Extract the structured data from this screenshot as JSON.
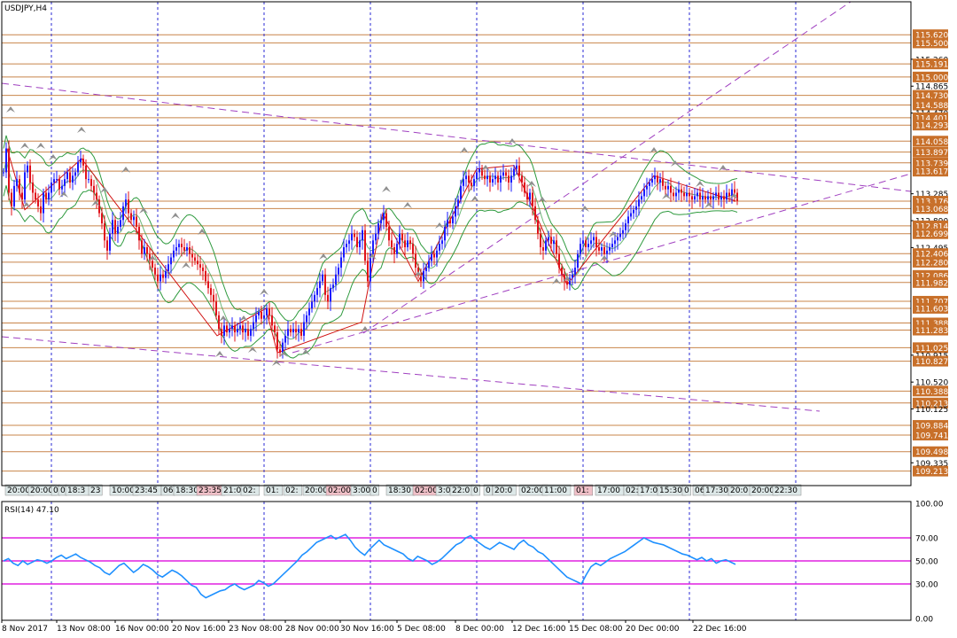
{
  "window": {
    "title": "USDJPY,H4"
  },
  "chart_data": [
    {
      "type": "candlestick",
      "title": "USDJPY,H4",
      "ylim": [
        109.0,
        116.0
      ],
      "price_labels": [
        "115.620",
        "115.500",
        "115.260",
        "115.191",
        "115.000",
        "114.865",
        "114.730",
        "114.588",
        "114.470",
        "114.401",
        "114.293",
        "114.058",
        "113.897",
        "113.739",
        "113.617",
        "113.285",
        "113.176",
        "113.068",
        "112.890",
        "112.814",
        "112.699",
        "112.495",
        "112.406",
        "112.280",
        "112.086",
        "111.982",
        "111.707",
        "111.603",
        "111.388",
        "111.283",
        "111.025",
        "110.915",
        "110.827",
        "110.520",
        "110.388",
        "110.213",
        "110.125",
        "109.884",
        "109.741",
        "109.498",
        "109.335",
        "109.213"
      ],
      "level_lines": [
        115.62,
        115.5,
        115.191,
        115.0,
        114.73,
        114.588,
        114.401,
        114.293,
        114.058,
        113.897,
        113.739,
        113.617,
        113.176,
        113.068,
        112.814,
        112.699,
        112.406,
        112.28,
        112.086,
        111.982,
        111.707,
        111.603,
        111.388,
        111.283,
        111.025,
        110.827,
        110.388,
        110.213,
        109.884,
        109.741,
        109.498,
        109.213
      ],
      "highlighted_labels": [
        "115.620",
        "115.500",
        "115.191",
        "115.000",
        "114.730",
        "114.588",
        "114.401",
        "114.293",
        "114.058",
        "113.897",
        "113.739",
        "113.617",
        "113.176",
        "113.068",
        "112.814",
        "112.699",
        "112.406",
        "112.280",
        "112.086",
        "111.982",
        "111.707",
        "111.603",
        "111.388",
        "111.283",
        "111.025",
        "110.827",
        "110.388",
        "110.213",
        "109.884",
        "109.741",
        "109.498",
        "109.213"
      ],
      "close_path": [
        [
          0,
          113.6
        ],
        [
          3,
          113.95
        ],
        [
          6,
          113.3
        ],
        [
          9,
          113.1
        ],
        [
          12,
          113.4
        ],
        [
          15,
          113.5
        ],
        [
          18,
          113.3
        ],
        [
          21,
          113.2
        ],
        [
          24,
          113.6
        ],
        [
          27,
          113.7
        ],
        [
          30,
          113.45
        ],
        [
          33,
          113.3
        ],
        [
          36,
          113.2
        ],
        [
          39,
          113.1
        ],
        [
          42,
          113.0
        ],
        [
          45,
          113.3
        ],
        [
          48,
          113.2
        ],
        [
          51,
          113.3
        ],
        [
          54,
          113.45
        ],
        [
          57,
          113.5
        ],
        [
          60,
          113.5
        ],
        [
          63,
          113.35
        ],
        [
          66,
          113.4
        ],
        [
          69,
          113.5
        ],
        [
          72,
          113.6
        ],
        [
          75,
          113.45
        ],
        [
          78,
          113.55
        ],
        [
          81,
          113.6
        ],
        [
          84,
          113.75
        ],
        [
          87,
          113.8
        ],
        [
          90,
          113.7
        ],
        [
          93,
          113.5
        ],
        [
          96,
          113.5
        ],
        [
          99,
          113.4
        ],
        [
          102,
          113.3
        ],
        [
          105,
          113.2
        ],
        [
          108,
          113.0
        ],
        [
          111,
          112.85
        ],
        [
          114,
          112.6
        ],
        [
          117,
          112.45
        ],
        [
          120,
          112.7
        ],
        [
          123,
          112.9
        ],
        [
          126,
          112.7
        ],
        [
          129,
          112.8
        ],
        [
          132,
          112.9
        ],
        [
          135,
          113.1
        ],
        [
          138,
          113.2
        ],
        [
          141,
          113.0
        ],
        [
          144,
          112.9
        ],
        [
          147,
          112.95
        ],
        [
          150,
          112.8
        ],
        [
          153,
          112.6
        ],
        [
          156,
          112.4
        ],
        [
          159,
          112.5
        ],
        [
          162,
          112.4
        ],
        [
          165,
          112.3
        ],
        [
          168,
          112.2
        ],
        [
          171,
          112.1
        ],
        [
          174,
          112.0
        ],
        [
          177,
          112.1
        ],
        [
          180,
          112.05
        ],
        [
          183,
          112.15
        ],
        [
          186,
          112.25
        ],
        [
          189,
          112.35
        ],
        [
          192,
          112.45
        ],
        [
          195,
          112.5
        ],
        [
          198,
          112.55
        ],
        [
          201,
          112.5
        ],
        [
          204,
          112.45
        ],
        [
          207,
          112.5
        ],
        [
          210,
          112.4
        ],
        [
          213,
          112.35
        ],
        [
          216,
          112.3
        ],
        [
          219,
          112.25
        ],
        [
          222,
          112.2
        ],
        [
          225,
          112.15
        ],
        [
          228,
          112.0
        ],
        [
          231,
          111.9
        ],
        [
          234,
          111.8
        ],
        [
          237,
          111.7
        ],
        [
          240,
          111.5
        ],
        [
          243,
          111.3
        ],
        [
          246,
          111.2
        ],
        [
          249,
          111.35
        ],
        [
          252,
          111.25
        ],
        [
          255,
          111.3
        ],
        [
          258,
          111.35
        ],
        [
          261,
          111.25
        ],
        [
          264,
          111.3
        ],
        [
          267,
          111.35
        ],
        [
          270,
          111.25
        ],
        [
          273,
          111.3
        ],
        [
          276,
          111.2
        ],
        [
          279,
          111.3
        ],
        [
          282,
          111.4
        ],
        [
          285,
          111.5
        ],
        [
          288,
          111.55
        ],
        [
          291,
          111.45
        ],
        [
          294,
          111.5
        ],
        [
          297,
          111.6
        ],
        [
          300,
          111.5
        ],
        [
          303,
          111.35
        ],
        [
          306,
          111.25
        ],
        [
          309,
          111.0
        ],
        [
          312,
          110.95
        ],
        [
          315,
          111.1
        ],
        [
          318,
          111.2
        ],
        [
          321,
          111.3
        ],
        [
          324,
          111.25
        ],
        [
          327,
          111.3
        ],
        [
          330,
          111.25
        ],
        [
          333,
          111.3
        ],
        [
          336,
          111.2
        ],
        [
          339,
          111.4
        ],
        [
          342,
          111.5
        ],
        [
          345,
          111.6
        ],
        [
          348,
          111.7
        ],
        [
          351,
          111.8
        ],
        [
          354,
          111.9
        ],
        [
          357,
          112.0
        ],
        [
          360,
          112.1
        ],
        [
          363,
          111.8
        ],
        [
          366,
          111.7
        ],
        [
          369,
          111.9
        ],
        [
          372,
          111.95
        ],
        [
          375,
          112.1
        ],
        [
          378,
          112.2
        ],
        [
          381,
          112.35
        ],
        [
          384,
          112.5
        ],
        [
          387,
          112.55
        ],
        [
          390,
          112.6
        ],
        [
          393,
          112.7
        ],
        [
          396,
          112.65
        ],
        [
          399,
          112.5
        ],
        [
          402,
          112.6
        ],
        [
          405,
          112.75
        ],
        [
          408,
          112.3
        ],
        [
          411,
          112.0
        ],
        [
          414,
          112.4
        ],
        [
          417,
          112.6
        ],
        [
          420,
          112.7
        ],
        [
          423,
          112.85
        ],
        [
          426,
          112.9
        ],
        [
          429,
          113.0
        ],
        [
          432,
          112.8
        ],
        [
          435,
          112.6
        ],
        [
          438,
          112.5
        ],
        [
          441,
          112.4
        ],
        [
          444,
          112.55
        ],
        [
          447,
          112.7
        ],
        [
          450,
          112.6
        ],
        [
          453,
          112.5
        ],
        [
          456,
          112.6
        ],
        [
          459,
          112.55
        ],
        [
          462,
          112.4
        ],
        [
          465,
          112.2
        ],
        [
          468,
          112.1
        ],
        [
          471,
          112.0
        ],
        [
          474,
          112.15
        ],
        [
          477,
          112.2
        ],
        [
          480,
          112.3
        ],
        [
          483,
          112.4
        ],
        [
          486,
          112.35
        ],
        [
          489,
          112.45
        ],
        [
          492,
          112.55
        ],
        [
          495,
          112.6
        ],
        [
          498,
          112.8
        ],
        [
          501,
          112.9
        ],
        [
          504,
          112.85
        ],
        [
          507,
          112.95
        ],
        [
          510,
          113.1
        ],
        [
          513,
          113.2
        ],
        [
          516,
          113.4
        ],
        [
          519,
          113.5
        ],
        [
          522,
          113.55
        ],
        [
          525,
          113.45
        ],
        [
          528,
          113.4
        ],
        [
          531,
          113.5
        ],
        [
          534,
          113.6
        ],
        [
          537,
          113.65
        ],
        [
          540,
          113.55
        ],
        [
          543,
          113.5
        ],
        [
          546,
          113.55
        ],
        [
          549,
          113.45
        ],
        [
          552,
          113.5
        ],
        [
          555,
          113.55
        ],
        [
          558,
          113.45
        ],
        [
          561,
          113.55
        ],
        [
          564,
          113.6
        ],
        [
          567,
          113.55
        ],
        [
          570,
          113.45
        ],
        [
          573,
          113.55
        ],
        [
          576,
          113.65
        ],
        [
          579,
          113.7
        ],
        [
          582,
          113.55
        ],
        [
          585,
          113.45
        ],
        [
          588,
          113.3
        ],
        [
          591,
          113.2
        ],
        [
          594,
          113.3
        ],
        [
          597,
          113.1
        ],
        [
          600,
          112.9
        ],
        [
          603,
          112.7
        ],
        [
          606,
          112.5
        ],
        [
          609,
          112.45
        ],
        [
          612,
          112.6
        ],
        [
          615,
          112.65
        ],
        [
          618,
          112.55
        ],
        [
          621,
          112.6
        ],
        [
          624,
          112.4
        ],
        [
          627,
          112.2
        ],
        [
          630,
          112.1
        ],
        [
          633,
          112.0
        ],
        [
          636,
          111.95
        ],
        [
          639,
          112.05
        ],
        [
          642,
          112.1
        ],
        [
          645,
          112.2
        ],
        [
          648,
          112.4
        ],
        [
          651,
          112.55
        ],
        [
          654,
          112.6
        ],
        [
          657,
          112.5
        ],
        [
          660,
          112.55
        ],
        [
          663,
          112.6
        ],
        [
          666,
          112.65
        ],
        [
          669,
          112.5
        ],
        [
          672,
          112.45
        ],
        [
          675,
          112.5
        ],
        [
          678,
          112.4
        ],
        [
          681,
          112.45
        ],
        [
          684,
          112.5
        ],
        [
          687,
          112.55
        ],
        [
          690,
          112.6
        ],
        [
          693,
          112.65
        ],
        [
          696,
          112.7
        ],
        [
          699,
          112.75
        ],
        [
          702,
          112.85
        ],
        [
          705,
          112.95
        ],
        [
          708,
          113.0
        ],
        [
          711,
          113.05
        ],
        [
          714,
          113.1
        ],
        [
          717,
          113.2
        ],
        [
          720,
          113.25
        ],
        [
          723,
          113.35
        ],
        [
          726,
          113.4
        ],
        [
          729,
          113.45
        ],
        [
          732,
          113.5
        ],
        [
          735,
          113.55
        ],
        [
          738,
          113.45
        ],
        [
          741,
          113.5
        ],
        [
          744,
          113.4
        ],
        [
          747,
          113.35
        ],
        [
          750,
          113.4
        ],
        [
          753,
          113.3
        ],
        [
          756,
          113.25
        ],
        [
          759,
          113.3
        ],
        [
          762,
          113.35
        ],
        [
          765,
          113.3
        ],
        [
          768,
          113.25
        ],
        [
          771,
          113.3
        ],
        [
          774,
          113.25
        ],
        [
          777,
          113.2
        ],
        [
          780,
          113.25
        ],
        [
          783,
          113.3
        ],
        [
          786,
          113.2
        ],
        [
          789,
          113.25
        ],
        [
          792,
          113.2
        ],
        [
          795,
          113.25
        ],
        [
          798,
          113.2
        ],
        [
          801,
          113.25
        ],
        [
          804,
          113.3
        ],
        [
          807,
          113.2
        ],
        [
          810,
          113.25
        ],
        [
          813,
          113.2
        ],
        [
          816,
          113.3
        ],
        [
          819,
          113.25
        ],
        [
          822,
          113.35
        ],
        [
          825,
          113.3
        ],
        [
          828,
          113.18
        ]
      ],
      "sub_window_axis_labels": [
        "20:00",
        "20:00",
        "0",
        "0",
        "18:3",
        "23",
        "10:00",
        "23:45",
        "06",
        "18:30",
        "23:35",
        "21:00",
        "02:",
        "01:",
        "02:",
        "20:00",
        "02:00",
        "3:00",
        "0",
        "18:30",
        "02:00",
        "3:00",
        "22:0",
        "0",
        "0",
        "20:0",
        "02:00",
        "11:00",
        "01:",
        "17:00",
        "02:",
        "17:0",
        "15:30",
        "0",
        "06",
        "17:30",
        "20:0",
        "20:00",
        "22:30"
      ],
      "time_labels": [
        "8 Nov 2017",
        "13 Nov 08:00",
        "16 Nov 00:00",
        "20 Nov 16:00",
        "23 Nov 08:00",
        "28 Nov 00:00",
        "30 Nov 16:00",
        "5 Dec 08:00",
        "8 Dec 00:00",
        "12 Dec 16:00",
        "15 Dec 08:00",
        "20 Dec 00:00",
        "22 Dec 16:00"
      ]
    },
    {
      "type": "line",
      "title": "RSI(14) 47.10",
      "ylim": [
        0,
        100
      ],
      "y_labels": [
        "100.00",
        "70.00",
        "50.00",
        "30.00",
        "0.00"
      ],
      "levels": [
        70,
        50,
        30
      ],
      "values": [
        50,
        52,
        48,
        46,
        50,
        47,
        49,
        51,
        50,
        48,
        50,
        53,
        55,
        52,
        54,
        56,
        53,
        51,
        49,
        46,
        44,
        40,
        38,
        42,
        46,
        48,
        44,
        40,
        43,
        47,
        45,
        42,
        38,
        36,
        39,
        42,
        40,
        37,
        33,
        29,
        27,
        21,
        18,
        20,
        22,
        24,
        25,
        28,
        30,
        27,
        25,
        27,
        29,
        33,
        31,
        28,
        30,
        34,
        38,
        42,
        46,
        50,
        55,
        58,
        62,
        66,
        68,
        70,
        72,
        69,
        71,
        73,
        68,
        62,
        58,
        55,
        60,
        64,
        68,
        64,
        62,
        60,
        58,
        56,
        52,
        50,
        54,
        52,
        50,
        47,
        49,
        52,
        56,
        60,
        64,
        66,
        70,
        72,
        68,
        65,
        62,
        60,
        63,
        66,
        64,
        62,
        60,
        65,
        68,
        64,
        62,
        58,
        56,
        52,
        48,
        44,
        40,
        36,
        34,
        32,
        30,
        38,
        45,
        48,
        46,
        49,
        52,
        54,
        56,
        58,
        61,
        64,
        67,
        70,
        68,
        66,
        65,
        64,
        62,
        60,
        58,
        56,
        55,
        53,
        51,
        53,
        50,
        52,
        48,
        50,
        51,
        49,
        47
      ]
    }
  ]
}
